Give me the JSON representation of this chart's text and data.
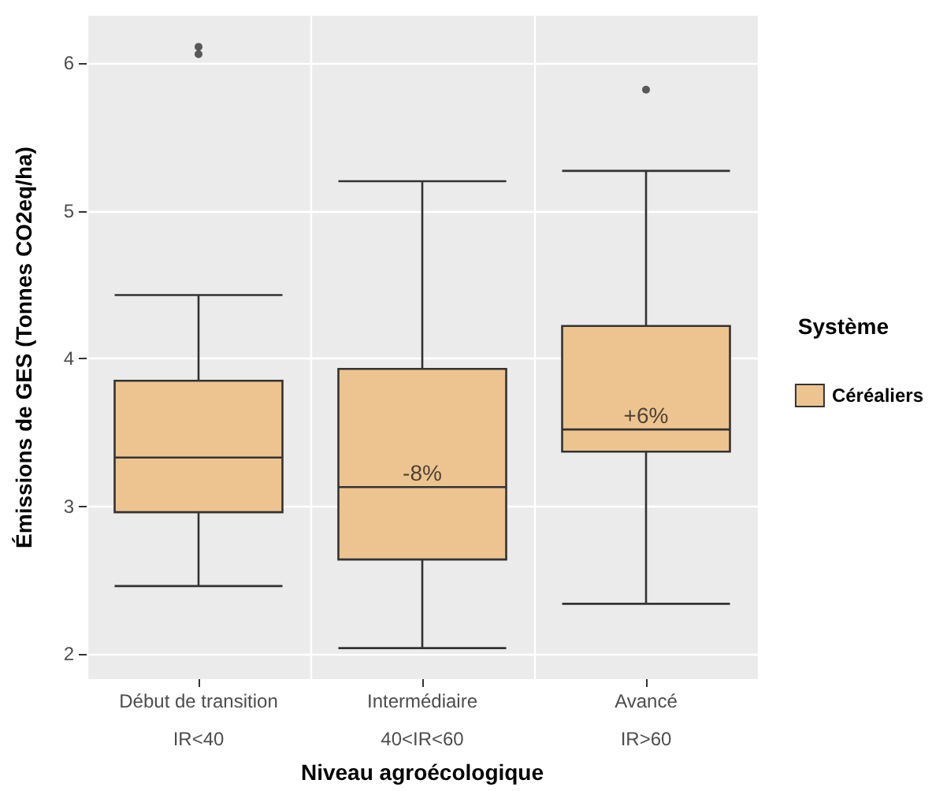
{
  "chart_data": {
    "type": "box",
    "xlabel": "Niveau agroécologique",
    "ylabel": "Émissions de GES (Tonnes CO2eq/ha)",
    "legend_title": "Système",
    "categories": [
      "Début de transition\n\nIR<40",
      "Intermédiaire\n\n40<IR<60",
      "Avancé\n\nIR>60"
    ],
    "series": [
      {
        "name": "Céréaliers",
        "color": "#edc48f",
        "boxes": [
          {
            "low": 2.46,
            "q1": 2.96,
            "median": 3.33,
            "q3": 3.85,
            "high": 4.43,
            "outliers": [
              6.06,
              6.11
            ]
          },
          {
            "low": 2.04,
            "q1": 2.64,
            "median": 3.13,
            "q3": 3.93,
            "high": 5.2
          },
          {
            "low": 2.34,
            "q1": 3.37,
            "median": 3.52,
            "q3": 4.22,
            "high": 5.27,
            "outliers": [
              5.82
            ]
          }
        ]
      }
    ],
    "annotations": [
      "-8%",
      "+6%"
    ],
    "ylim": [
      1.83,
      6.32
    ],
    "yticks": [
      2,
      3,
      4,
      5,
      6
    ],
    "grid": true,
    "legend": "right"
  }
}
